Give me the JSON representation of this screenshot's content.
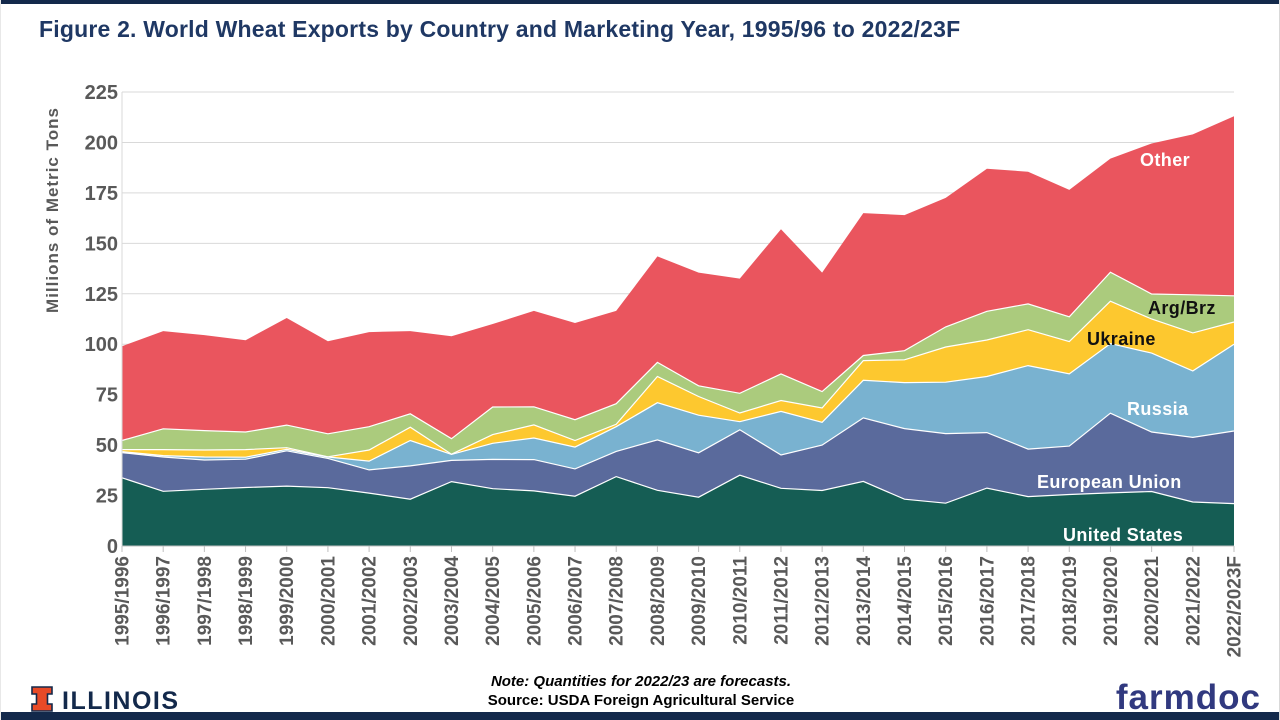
{
  "page": {
    "title": "Figure 2. World Wheat Exports by Country and Marketing Year, 1995/96 to 2022/23F"
  },
  "chart_data": {
    "type": "area",
    "stacked": true,
    "title": "Figure 2. World Wheat Exports by Country and Marketing Year, 1995/96 to 2022/23F",
    "ylabel": "Millions of Metric Tons",
    "xlabel": "",
    "ylim": [
      0,
      225
    ],
    "ytick_step": 25,
    "grid": true,
    "legend": "inline-labels",
    "note": "Quantities for 2022/23 are forecasts",
    "categories": [
      "1995/1996",
      "1996/1997",
      "1997/1998",
      "1998/1999",
      "1999/2000",
      "2000/2001",
      "2001/2002",
      "2002/2003",
      "2003/2004",
      "2004/2005",
      "2005/2006",
      "2006/2007",
      "2007/2008",
      "2008/2009",
      "2009/2010",
      "2010/2011",
      "2011/2012",
      "2012/2013",
      "2013/2014",
      "2014/2015",
      "2015/2016",
      "2016/2017",
      "2017/2018",
      "2018/2019",
      "2019/2020",
      "2020/2021",
      "2021/2022",
      "2022/2023F"
    ],
    "series": [
      {
        "name": "United States",
        "color": "#155D54",
        "values": [
          33.8,
          27.1,
          28.1,
          29.0,
          29.7,
          28.9,
          26.2,
          23.2,
          31.9,
          28.4,
          27.3,
          24.7,
          34.4,
          27.6,
          24.2,
          35.1,
          28.6,
          27.5,
          32.0,
          23.2,
          21.2,
          28.7,
          24.5,
          25.5,
          26.3,
          27.0,
          21.8,
          21.0
        ]
      },
      {
        "name": "European Union",
        "color": "#5A6A9C",
        "values": [
          12.5,
          17.0,
          14.5,
          14.0,
          17.5,
          14.5,
          11.5,
          16.5,
          10.5,
          14.5,
          15.5,
          13.5,
          12.5,
          25.0,
          22.0,
          22.5,
          16.5,
          22.5,
          31.5,
          35.0,
          34.5,
          27.5,
          23.5,
          24.0,
          39.5,
          29.5,
          32.0,
          36.0
        ]
      },
      {
        "name": "Russia",
        "color": "#79B2D0",
        "values": [
          0.5,
          0.7,
          1.5,
          1.0,
          0.7,
          0.7,
          4.4,
          12.6,
          3.0,
          8.0,
          10.7,
          10.8,
          12.2,
          18.4,
          18.6,
          4.0,
          21.6,
          11.3,
          18.6,
          22.8,
          25.5,
          27.8,
          41.4,
          35.8,
          34.5,
          39.1,
          33.0,
          43.0
        ]
      },
      {
        "name": "Ukraine",
        "color": "#FDC82F",
        "values": [
          1.0,
          3.0,
          3.5,
          3.8,
          0.8,
          0.1,
          5.5,
          6.6,
          0.1,
          4.3,
          6.5,
          3.3,
          1.2,
          13.0,
          9.3,
          4.3,
          5.4,
          7.1,
          9.8,
          11.3,
          17.4,
          18.1,
          17.8,
          16.0,
          21.0,
          16.9,
          18.8,
          11.0
        ]
      },
      {
        "name": "Arg/Brz",
        "color": "#ABCB7D",
        "values": [
          4.5,
          10.3,
          9.6,
          8.7,
          11.2,
          11.4,
          11.5,
          6.6,
          7.7,
          13.7,
          9.0,
          10.3,
          10.2,
          7.0,
          5.3,
          9.8,
          13.2,
          8.1,
          2.5,
          4.5,
          10.0,
          14.2,
          12.8,
          12.3,
          14.4,
          12.4,
          18.9,
          13.0
        ]
      },
      {
        "name": "Other",
        "color": "#EA555E",
        "values": [
          46.7,
          48.4,
          47.3,
          45.5,
          53.1,
          45.9,
          46.9,
          41.0,
          50.8,
          41.1,
          47.5,
          47.9,
          46.0,
          52.5,
          56.1,
          56.8,
          71.7,
          59.0,
          70.6,
          67.2,
          63.9,
          70.7,
          65.5,
          62.9,
          56.3,
          74.6,
          79.5,
          89.0
        ]
      }
    ]
  },
  "axis_style": {
    "tick_label_color": "#595959",
    "grid_color": "#D9D9D9",
    "axis_line_color": "#BFBFBF"
  },
  "footer": {
    "note": "Note: Quantities for 2022/23 are forecasts.",
    "source": "Source: USDA Foreign Agricultural Service",
    "brand_left": "ILLINOIS",
    "brand_right": "farmdoc"
  },
  "icons": {
    "illinois_block_i": "block-i-logo",
    "illinois_orange": "#E84A27",
    "navy": "#13294B"
  }
}
